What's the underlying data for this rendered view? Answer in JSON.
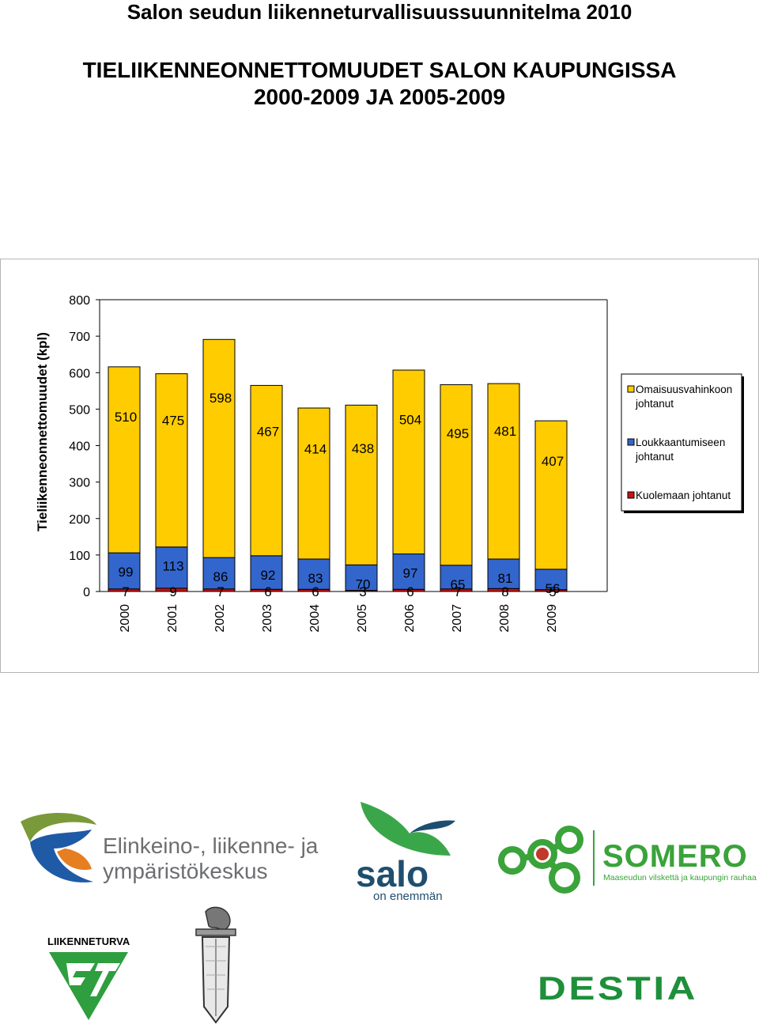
{
  "document": {
    "title": "Salon seudun liikenneturvallisuussuunnitelma 2010",
    "heading_line1": "TIELIIKENNEONNETTOMUUDET SALON KAUPUNGISSA",
    "heading_line2": "2000-2009 JA 2005-2009"
  },
  "chart_data": {
    "type": "bar",
    "stacked": true,
    "categories": [
      "2000",
      "2001",
      "2002",
      "2003",
      "2004",
      "2005",
      "2006",
      "2007",
      "2008",
      "2009"
    ],
    "series": [
      {
        "name": "Kuolemaan johtanut",
        "values": [
          7,
          9,
          7,
          6,
          6,
          3,
          6,
          7,
          8,
          5
        ],
        "color": "#cc1111"
      },
      {
        "name": "Loukkaantumiseen johtanut",
        "values": [
          99,
          113,
          86,
          92,
          83,
          70,
          97,
          65,
          81,
          56
        ],
        "color": "#3366cc"
      },
      {
        "name": "Omaisuusvahinkoon johtanut",
        "values": [
          510,
          475,
          598,
          467,
          414,
          438,
          504,
          495,
          481,
          407
        ],
        "color": "#ffcc00"
      }
    ],
    "ylabel": "Tieliikenneonnettomuudet (kpl)",
    "ylim": [
      0,
      800
    ],
    "yticks": [
      0,
      100,
      200,
      300,
      400,
      500,
      600,
      700,
      800
    ],
    "grid": false,
    "legend_position": "right",
    "legend": [
      {
        "lines": [
          "Omaisuusvahinkoon",
          "johtanut"
        ],
        "color": "#ffcc00"
      },
      {
        "lines": [
          "Loukkaantumiseen",
          "johtanut"
        ],
        "color": "#3366cc"
      },
      {
        "lines": [
          "Kuolemaan johtanut"
        ],
        "color": "#cc1111"
      }
    ]
  },
  "logos": {
    "ely_line1": "Elinkeino-, liikenne- ja",
    "ely_line2": "ympäristökeskus",
    "salo_name": "salo",
    "salo_tagline": "on enemmän",
    "somero_name": "SOMERO",
    "somero_tagline": "Maaseudun vilskettä ja kaupungin rauhaa",
    "liikenneturva_name": "LIIKENNETURVA",
    "destia_name": "DESTIA"
  },
  "colors": {
    "ely_blue": "#1f5aa6",
    "ely_orange": "#e67e22",
    "ely_green": "#7a9a3a",
    "salo_navy": "#1f4e6f",
    "salo_green": "#3aa64a",
    "somero_green": "#3aa33a",
    "somero_red": "#c0392b",
    "liikenneturva_green": "#2e9e3e",
    "destia_green": "#1e8f3a",
    "police_grey": "#555555"
  }
}
